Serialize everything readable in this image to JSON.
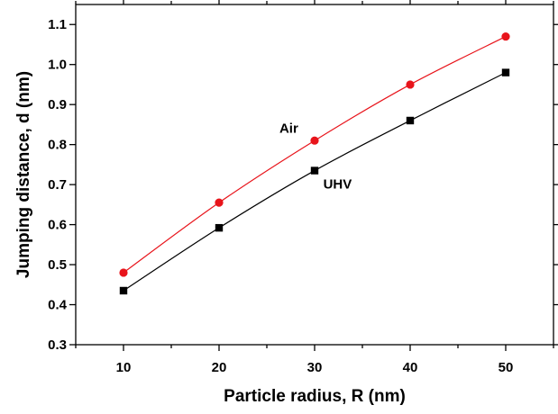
{
  "chart_data": {
    "type": "line",
    "title": "",
    "xlabel": "Particle radius, R (nm)",
    "ylabel": "Jumping distance, d (nm)",
    "xlim": [
      5,
      55
    ],
    "ylim": [
      0.3,
      1.15
    ],
    "x": [
      10,
      20,
      30,
      40,
      50
    ],
    "xticks": [
      10,
      20,
      30,
      40,
      50
    ],
    "yticks": [
      0.3,
      0.4,
      0.5,
      0.6,
      0.7,
      0.8,
      0.9,
      1.0,
      1.1
    ],
    "ytick_labels": [
      "0.3",
      "0.4",
      "0.5",
      "0.6",
      "0.7",
      "0.8",
      "0.9",
      "1.0",
      "1.1"
    ],
    "grid": false,
    "legend": "none",
    "series": [
      {
        "name": "Air",
        "values": [
          0.48,
          0.655,
          0.81,
          0.95,
          1.07
        ],
        "color": "#e8141b",
        "marker": "circle"
      },
      {
        "name": "UHV",
        "values": [
          0.435,
          0.592,
          0.735,
          0.86,
          0.98
        ],
        "color": "#000000",
        "marker": "square"
      }
    ],
    "annotations": [
      {
        "text": "Air",
        "x": 27.3,
        "y": 0.83
      },
      {
        "text": "UHV",
        "x": 32.4,
        "y": 0.69
      }
    ]
  }
}
